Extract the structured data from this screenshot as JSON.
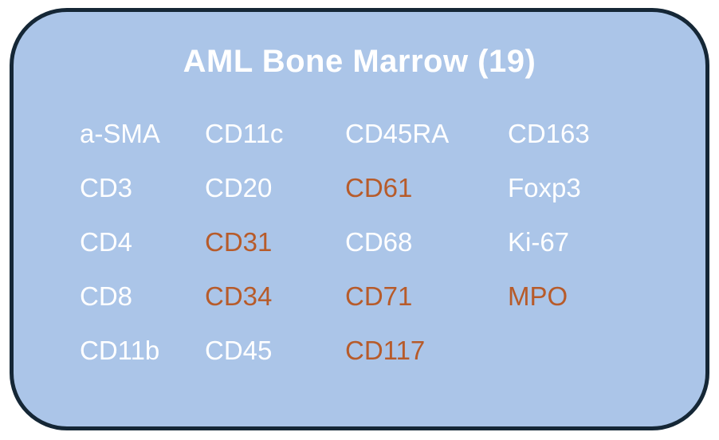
{
  "card": {
    "title": "AML Bone Marrow (19)",
    "marker_count": 19,
    "colors": {
      "background": "#abc5e8",
      "border": "#152736",
      "marker_default": "#ffffff",
      "marker_highlight": "#b75b2a"
    },
    "marker_grid": {
      "columns": 4,
      "rows": [
        [
          {
            "label": "a-SMA",
            "highlight": false
          },
          {
            "label": "CD11c",
            "highlight": false
          },
          {
            "label": "CD45RA",
            "highlight": false
          },
          {
            "label": "CD163",
            "highlight": false
          }
        ],
        [
          {
            "label": "CD3",
            "highlight": false
          },
          {
            "label": "CD20",
            "highlight": false
          },
          {
            "label": "CD61",
            "highlight": true
          },
          {
            "label": "Foxp3",
            "highlight": false
          }
        ],
        [
          {
            "label": "CD4",
            "highlight": false
          },
          {
            "label": "CD31",
            "highlight": true
          },
          {
            "label": "CD68",
            "highlight": false
          },
          {
            "label": "Ki-67",
            "highlight": false
          }
        ],
        [
          {
            "label": "CD8",
            "highlight": false
          },
          {
            "label": "CD34",
            "highlight": true
          },
          {
            "label": "CD71",
            "highlight": true
          },
          {
            "label": "MPO",
            "highlight": true
          }
        ],
        [
          {
            "label": "CD11b",
            "highlight": false
          },
          {
            "label": "CD45",
            "highlight": false
          },
          {
            "label": "CD117",
            "highlight": true
          }
        ]
      ]
    }
  }
}
